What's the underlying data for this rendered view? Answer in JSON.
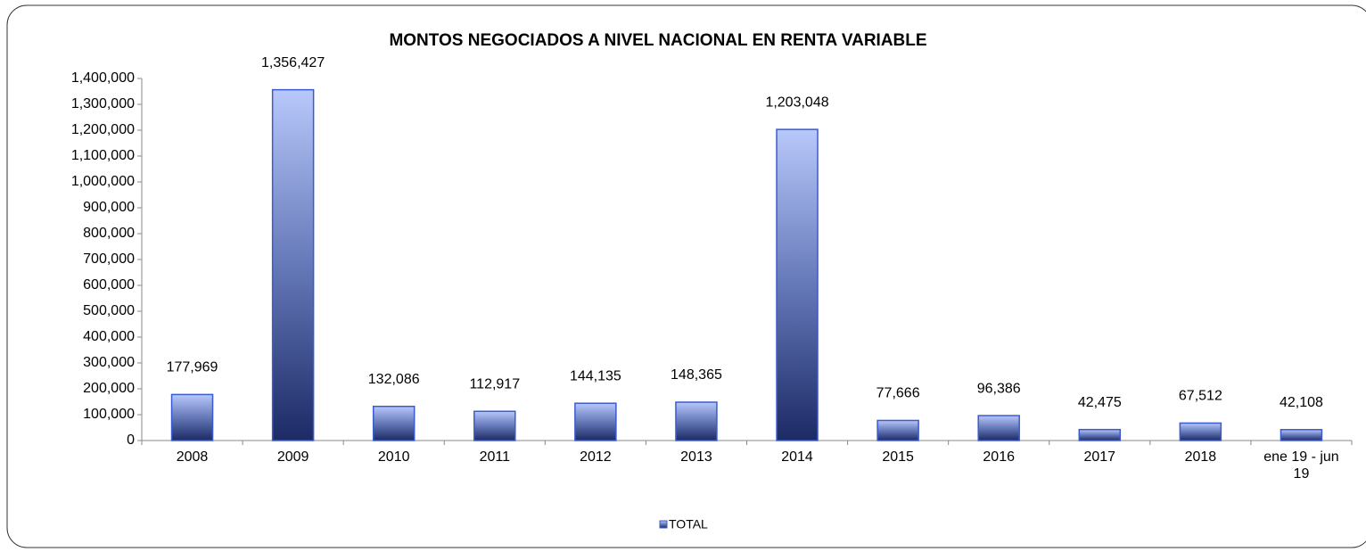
{
  "chart_data": {
    "type": "bar",
    "title": "MONTOS NEGOCIADOS A NIVEL NACIONAL EN RENTA VARIABLE",
    "categories": [
      "2008",
      "2009",
      "2010",
      "2011",
      "2012",
      "2013",
      "2014",
      "2015",
      "2016",
      "2017",
      "2018",
      "ene 19 - jun 19"
    ],
    "series": [
      {
        "name": "TOTAL",
        "color": "#3a5bd0",
        "values": [
          177969,
          1356427,
          132086,
          112917,
          144135,
          148365,
          1203048,
          77666,
          96386,
          42475,
          67512,
          42108
        ],
        "value_labels": [
          "177,969",
          "1,356,427",
          "132,086",
          "112,917",
          "144,135",
          "148,365",
          "1,203,048",
          "77,666",
          "96,386",
          "42,475",
          "67,512",
          "42,108"
        ]
      }
    ],
    "ylim": [
      0,
      1400000
    ],
    "yticks": [
      0,
      {
        "value": 100000,
        "label": "100,000"
      },
      {
        "value": 200000,
        "label": "200,000"
      },
      {
        "value": 300000,
        "label": "300,000"
      },
      {
        "value": 400000,
        "label": "400,000"
      },
      {
        "value": 500000,
        "label": "500,000"
      },
      {
        "value": 600000,
        "label": "600,000"
      },
      {
        "value": 700000,
        "label": "700,000"
      },
      {
        "value": 800000,
        "label": "800,000"
      },
      {
        "value": 900000,
        "label": "900,000"
      },
      {
        "value": 1000000,
        "label": "1,000,000"
      },
      {
        "value": 1100000,
        "label": "1,100,000"
      },
      {
        "value": 1200000,
        "label": "1,200,000"
      },
      {
        "value": 1300000,
        "label": "1,300,000"
      },
      {
        "value": 1400000,
        "label": "1,400,000"
      }
    ],
    "grid": false,
    "legend": "bottom"
  }
}
